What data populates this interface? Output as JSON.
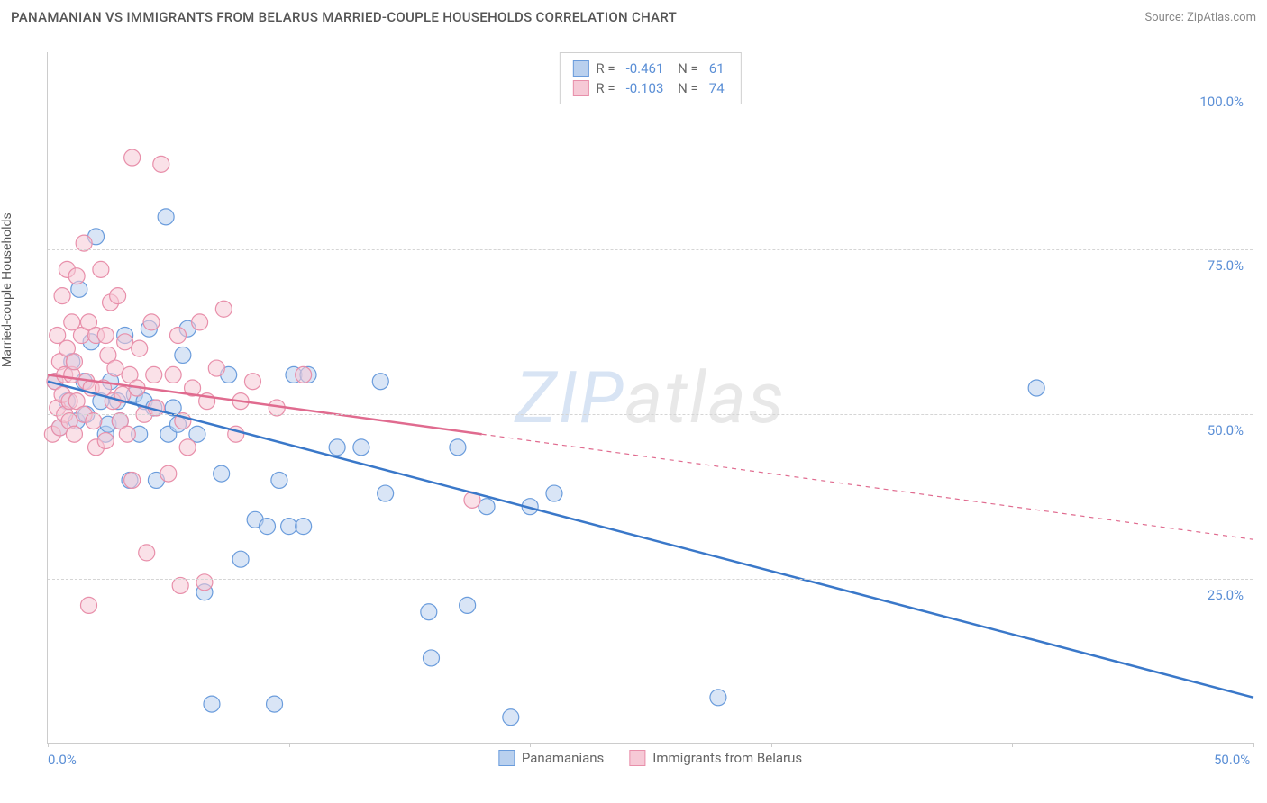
{
  "header": {
    "title": "PANAMANIAN VS IMMIGRANTS FROM BELARUS MARRIED-COUPLE HOUSEHOLDS CORRELATION CHART",
    "source": "Source: ZipAtlas.com"
  },
  "watermark": {
    "prefix": "ZIP",
    "suffix": "atlas"
  },
  "chart": {
    "type": "scatter",
    "background_color": "#ffffff",
    "grid_color": "#d5d5d5",
    "axis_color": "#cccccc",
    "ylabel": "Married-couple Households",
    "label_fontsize": 14,
    "label_color": "#555555",
    "tick_color": "#5b8fd6",
    "tick_fontsize": 15,
    "xlim": [
      0,
      50
    ],
    "ylim": [
      0,
      105
    ],
    "xticks": [
      0,
      10,
      20,
      30,
      40,
      50
    ],
    "xtick_labels": [
      "0.0%",
      "",
      "",
      "",
      "",
      "50.0%"
    ],
    "yticks": [
      25,
      50,
      75,
      100
    ],
    "ytick_labels": [
      "25.0%",
      "50.0%",
      "75.0%",
      "100.0%"
    ],
    "marker_radius": 9,
    "marker_opacity": 0.55,
    "marker_stroke_width": 1.2,
    "series": [
      {
        "name": "Panamanians",
        "fill_color": "#b9d0ee",
        "stroke_color": "#6a9cdc",
        "line_color": "#3a78c9",
        "R": "-0.461",
        "N": "61",
        "trend": {
          "x1": 0,
          "y1": 55,
          "x2": 50,
          "y2": 7,
          "solid_until_x": 50
        },
        "points": [
          [
            0.3,
            55
          ],
          [
            0.5,
            48
          ],
          [
            0.8,
            52
          ],
          [
            1,
            58
          ],
          [
            1.2,
            49
          ],
          [
            1.3,
            69
          ],
          [
            1.5,
            55
          ],
          [
            1.6,
            50
          ],
          [
            1.8,
            61
          ],
          [
            2,
            77
          ],
          [
            2.2,
            52
          ],
          [
            2.4,
            47
          ],
          [
            2.5,
            48.5
          ],
          [
            2.6,
            55
          ],
          [
            2.9,
            52
          ],
          [
            3,
            49
          ],
          [
            3.2,
            62
          ],
          [
            3.4,
            40
          ],
          [
            3.6,
            53
          ],
          [
            3.8,
            47
          ],
          [
            4,
            52
          ],
          [
            4.2,
            63
          ],
          [
            4.4,
            51
          ],
          [
            4.5,
            40
          ],
          [
            4.9,
            80
          ],
          [
            5,
            47
          ],
          [
            5.2,
            51
          ],
          [
            5.4,
            48.5
          ],
          [
            5.6,
            59
          ],
          [
            5.8,
            63
          ],
          [
            6.2,
            47
          ],
          [
            6.5,
            23
          ],
          [
            6.8,
            6
          ],
          [
            7.2,
            41
          ],
          [
            7.5,
            56
          ],
          [
            8,
            28
          ],
          [
            8.6,
            34
          ],
          [
            9.1,
            33
          ],
          [
            9.4,
            6
          ],
          [
            9.6,
            40
          ],
          [
            10,
            33
          ],
          [
            10.2,
            56
          ],
          [
            10.6,
            33
          ],
          [
            10.8,
            56
          ],
          [
            12,
            45
          ],
          [
            13,
            45
          ],
          [
            13.8,
            55
          ],
          [
            14,
            38
          ],
          [
            15.8,
            20
          ],
          [
            15.9,
            13
          ],
          [
            17,
            45
          ],
          [
            17.4,
            21
          ],
          [
            18.2,
            36
          ],
          [
            19.2,
            4
          ],
          [
            20,
            36
          ],
          [
            21,
            38
          ],
          [
            27.8,
            7
          ],
          [
            41,
            54
          ]
        ]
      },
      {
        "name": "Immigrants from Belarus",
        "fill_color": "#f6c9d6",
        "stroke_color": "#e88faa",
        "line_color": "#e06b8f",
        "R": "-0.103",
        "N": "74",
        "trend": {
          "x1": 0,
          "y1": 56,
          "x2": 50,
          "y2": 31,
          "solid_until_x": 18
        },
        "points": [
          [
            0.2,
            47
          ],
          [
            0.3,
            55
          ],
          [
            0.4,
            51
          ],
          [
            0.4,
            62
          ],
          [
            0.5,
            48
          ],
          [
            0.5,
            58
          ],
          [
            0.6,
            53
          ],
          [
            0.6,
            68
          ],
          [
            0.7,
            50
          ],
          [
            0.7,
            56
          ],
          [
            0.8,
            60
          ],
          [
            0.8,
            72
          ],
          [
            0.9,
            52
          ],
          [
            0.9,
            49
          ],
          [
            1,
            56
          ],
          [
            1,
            64
          ],
          [
            1.1,
            58
          ],
          [
            1.1,
            47
          ],
          [
            1.2,
            52
          ],
          [
            1.2,
            71
          ],
          [
            1.4,
            62
          ],
          [
            1.5,
            50
          ],
          [
            1.5,
            76
          ],
          [
            1.6,
            55
          ],
          [
            1.7,
            21
          ],
          [
            1.7,
            64
          ],
          [
            1.8,
            54
          ],
          [
            1.9,
            49
          ],
          [
            2,
            62
          ],
          [
            2,
            45
          ],
          [
            2.2,
            72
          ],
          [
            2.3,
            54
          ],
          [
            2.4,
            62
          ],
          [
            2.4,
            46
          ],
          [
            2.5,
            59
          ],
          [
            2.6,
            67
          ],
          [
            2.7,
            52
          ],
          [
            2.8,
            57
          ],
          [
            2.9,
            68
          ],
          [
            3,
            49
          ],
          [
            3.1,
            53
          ],
          [
            3.2,
            61
          ],
          [
            3.3,
            47
          ],
          [
            3.4,
            56
          ],
          [
            3.5,
            40
          ],
          [
            3.5,
            89
          ],
          [
            3.7,
            54
          ],
          [
            3.8,
            60
          ],
          [
            4,
            50
          ],
          [
            4.1,
            29
          ],
          [
            4.3,
            64
          ],
          [
            4.4,
            56
          ],
          [
            4.5,
            51
          ],
          [
            4.7,
            88
          ],
          [
            5,
            41
          ],
          [
            5.2,
            56
          ],
          [
            5.4,
            62
          ],
          [
            5.5,
            24
          ],
          [
            5.6,
            49
          ],
          [
            5.8,
            45
          ],
          [
            6,
            54
          ],
          [
            6.3,
            64
          ],
          [
            6.5,
            24.5
          ],
          [
            6.6,
            52
          ],
          [
            7,
            57
          ],
          [
            7.3,
            66
          ],
          [
            7.8,
            47
          ],
          [
            8,
            52
          ],
          [
            8.5,
            55
          ],
          [
            9.5,
            51
          ],
          [
            10.6,
            56
          ],
          [
            17.6,
            37
          ]
        ]
      }
    ]
  },
  "bottom_legend": {
    "items": [
      {
        "label": "Panamanians",
        "fill": "#b9d0ee",
        "stroke": "#6a9cdc"
      },
      {
        "label": "Immigrants from Belarus",
        "fill": "#f6c9d6",
        "stroke": "#e88faa"
      }
    ]
  }
}
